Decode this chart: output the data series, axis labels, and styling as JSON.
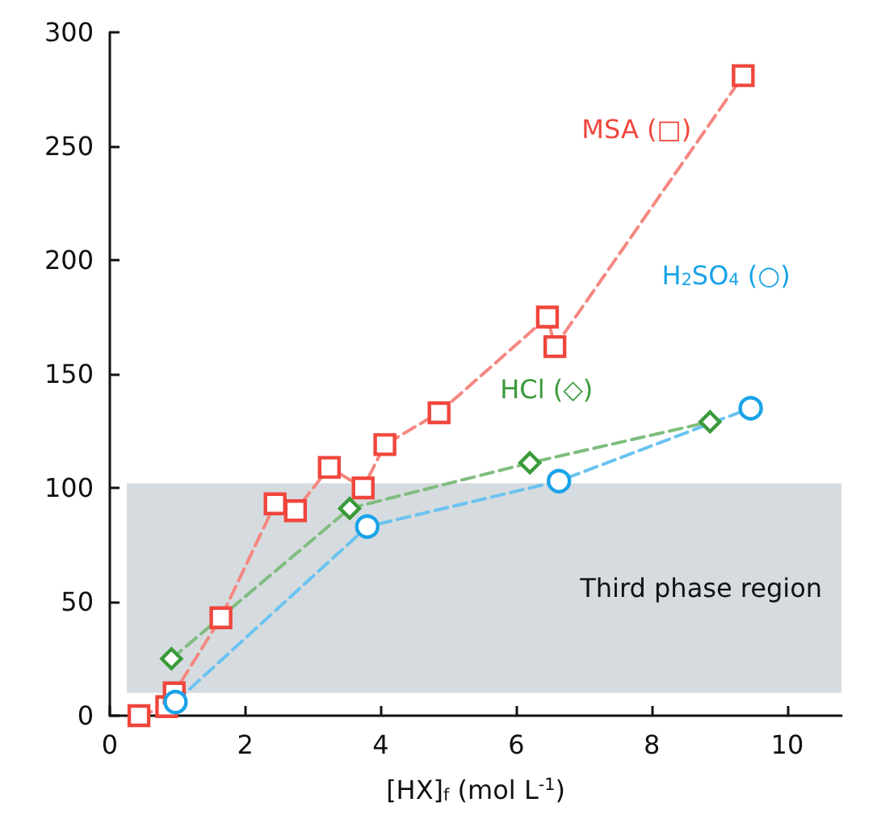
{
  "chart_data": {
    "type": "line",
    "xlabel": "[HX]$_{f}$ (mol L$^{-1}$)",
    "xlim": [
      0,
      10.8
    ],
    "xticks": [
      0,
      2,
      4,
      6,
      8,
      10
    ],
    "ylim": [
      0,
      300
    ],
    "yticks": [
      0,
      50,
      100,
      150,
      200,
      250,
      300
    ],
    "grid": false,
    "legend": false,
    "line_style": "dashed",
    "bands": [
      {
        "axis": "y",
        "from": 10,
        "to": 102,
        "label": "Third phase region",
        "color": "#d5dbdf"
      }
    ],
    "series": [
      {
        "name": "MSA (□)",
        "color": "#f0463c",
        "marker": "square",
        "x": [
          0.43,
          0.84,
          0.95,
          1.64,
          2.44,
          2.74,
          3.24,
          3.74,
          4.06,
          4.86,
          6.46,
          6.57,
          9.35
        ],
        "values": [
          0,
          4,
          10,
          43,
          93,
          90,
          109,
          100,
          119,
          133,
          175,
          162,
          281
        ]
      },
      {
        "name": "HCl (◇)",
        "color": "#3a9a3a",
        "marker": "diamond",
        "x": [
          0.91,
          3.54,
          6.2,
          8.86
        ],
        "values": [
          25,
          91,
          111,
          129
        ]
      },
      {
        "name": "H$_{2}$SO$_{4}$ (○)",
        "color": "#1aa3e8",
        "marker": "circle",
        "x": [
          0.97,
          3.8,
          6.63,
          9.46
        ],
        "values": [
          6,
          83,
          103,
          135
        ]
      }
    ]
  }
}
